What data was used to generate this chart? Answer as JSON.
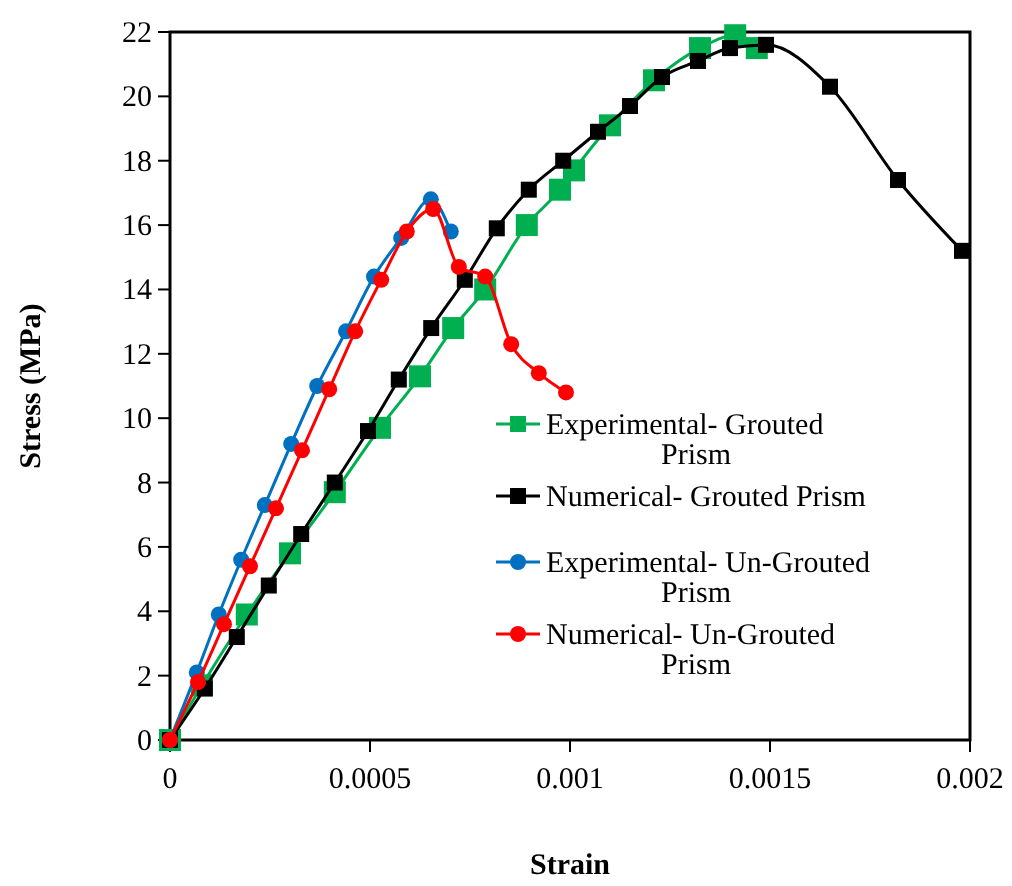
{
  "chart_data": {
    "type": "line",
    "xlabel": "Strain",
    "ylabel": "Stress (MPa)",
    "xlim": [
      0,
      0.002
    ],
    "ylim": [
      0,
      22
    ],
    "xticks": [
      0,
      0.0005,
      0.001,
      0.0015,
      0.002
    ],
    "yticks": [
      0,
      2,
      4,
      6,
      8,
      10,
      12,
      14,
      16,
      18,
      20,
      22
    ],
    "grid": false,
    "legend": "bottom right",
    "series": [
      {
        "name": "Experimental- Grouted Prism",
        "color": "#00b050",
        "marker": "square",
        "x": [
          0,
          8e-05,
          0.000192,
          0.0003,
          0.000412,
          0.000525,
          0.000625,
          0.000708,
          0.000788,
          0.000892,
          0.000975,
          0.00101,
          0.0011,
          0.00121,
          0.001325,
          0.001413,
          0.001467
        ],
        "values": [
          0,
          1.7,
          3.9,
          5.8,
          7.7,
          9.7,
          11.3,
          12.8,
          14.0,
          16.0,
          17.1,
          17.7,
          19.1,
          20.5,
          21.5,
          21.9,
          21.5
        ]
      },
      {
        "name": "Numerical- Grouted Prism",
        "color": "#000000",
        "marker": "square",
        "x": [
          0,
          8.7e-05,
          0.000167,
          0.000247,
          0.000328,
          0.000412,
          0.000495,
          0.000572,
          0.000653,
          0.000737,
          0.000817,
          0.000897,
          0.000983,
          0.00107,
          0.00115,
          0.00123,
          0.00132,
          0.0014,
          0.00149,
          0.00165,
          0.00182,
          0.00198
        ],
        "values": [
          0,
          1.6,
          3.2,
          4.8,
          6.4,
          8.0,
          9.6,
          11.2,
          12.8,
          14.3,
          15.9,
          17.1,
          18.0,
          18.9,
          19.7,
          20.6,
          21.1,
          21.5,
          21.6,
          20.3,
          17.4,
          15.2
        ]
      },
      {
        "name": "Experimental- Un-Grouted Prism",
        "color": "#0070c0",
        "marker": "circle",
        "x": [
          0,
          6.7e-05,
          0.000122,
          0.000178,
          0.000237,
          0.000303,
          0.000368,
          0.00044,
          0.00051,
          0.000578,
          0.000652,
          0.000702
        ],
        "values": [
          0,
          2.1,
          3.9,
          5.6,
          7.3,
          9.2,
          11.0,
          12.7,
          14.4,
          15.6,
          16.8,
          15.8
        ]
      },
      {
        "name": "Numerical- Un-Grouted Prism",
        "color": "#ff0000",
        "marker": "circle",
        "x": [
          0,
          7e-05,
          0.000135,
          0.0002,
          0.000265,
          0.00033,
          0.000398,
          0.000463,
          0.000528,
          0.000592,
          0.000658,
          0.000722,
          0.000788,
          0.000853,
          0.000922,
          0.00099
        ],
        "values": [
          0,
          1.8,
          3.6,
          5.4,
          7.2,
          9.0,
          10.9,
          12.7,
          14.3,
          15.8,
          16.5,
          14.7,
          14.4,
          12.3,
          11.4,
          10.8
        ]
      }
    ]
  }
}
